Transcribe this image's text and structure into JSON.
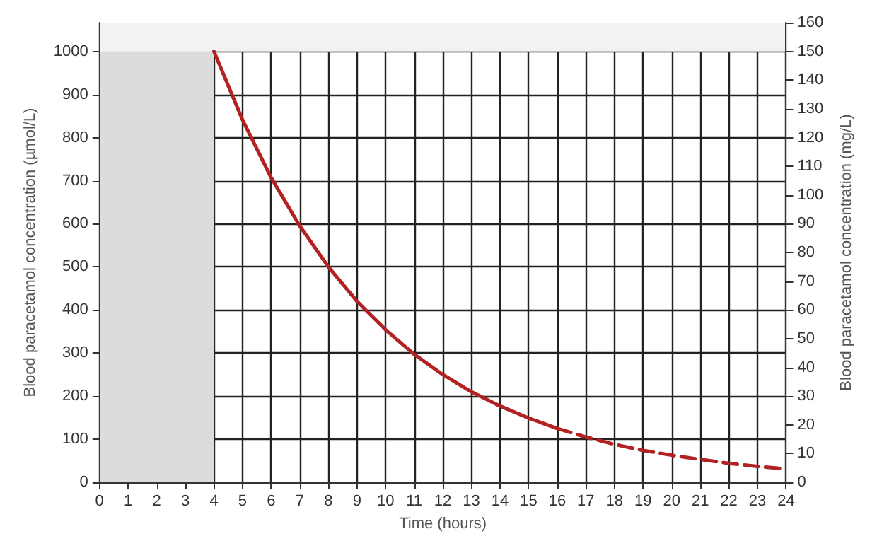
{
  "chart_data": {
    "type": "line",
    "xlabel": "Time (hours)",
    "ylabel": "Blood paracetamol concentration (µmol/L)",
    "y2label": "Blood paracetamol concentration (mg/L)",
    "xlim": [
      0,
      24
    ],
    "xticks": [
      0,
      1,
      2,
      3,
      4,
      5,
      6,
      7,
      8,
      9,
      10,
      11,
      12,
      13,
      14,
      15,
      16,
      17,
      18,
      19,
      20,
      21,
      22,
      23,
      24
    ],
    "ylim": [
      0,
      1067
    ],
    "yticks": [
      0,
      100,
      200,
      300,
      400,
      500,
      600,
      700,
      800,
      900,
      1000
    ],
    "y2lim": [
      0,
      160
    ],
    "y2ticks": [
      0,
      10,
      20,
      30,
      40,
      50,
      60,
      70,
      80,
      90,
      100,
      110,
      120,
      130,
      140,
      150,
      160
    ],
    "grid": true,
    "marker": "none",
    "bands": [
      {
        "axis": "x",
        "from": 0,
        "to": 4,
        "color": "#dcdcdc"
      },
      {
        "axis": "y",
        "from": 1000,
        "to": 1067,
        "color": "#f2f2f2"
      }
    ],
    "series": [
      {
        "color": "#b22222",
        "line_style": "solid",
        "x": [
          4,
          5,
          6,
          7,
          8,
          9,
          10,
          11,
          12,
          13,
          14,
          15,
          16
        ],
        "values": [
          1000,
          841,
          707,
          595,
          500,
          420,
          354,
          297,
          250,
          210,
          177,
          149,
          125
        ]
      },
      {
        "color": "#b22222",
        "line_style": "dashed",
        "x": [
          16,
          17,
          18,
          19,
          20,
          21,
          22,
          23,
          24
        ],
        "values": [
          125,
          105,
          88,
          74,
          63,
          53,
          44,
          37,
          31
        ]
      }
    ]
  }
}
